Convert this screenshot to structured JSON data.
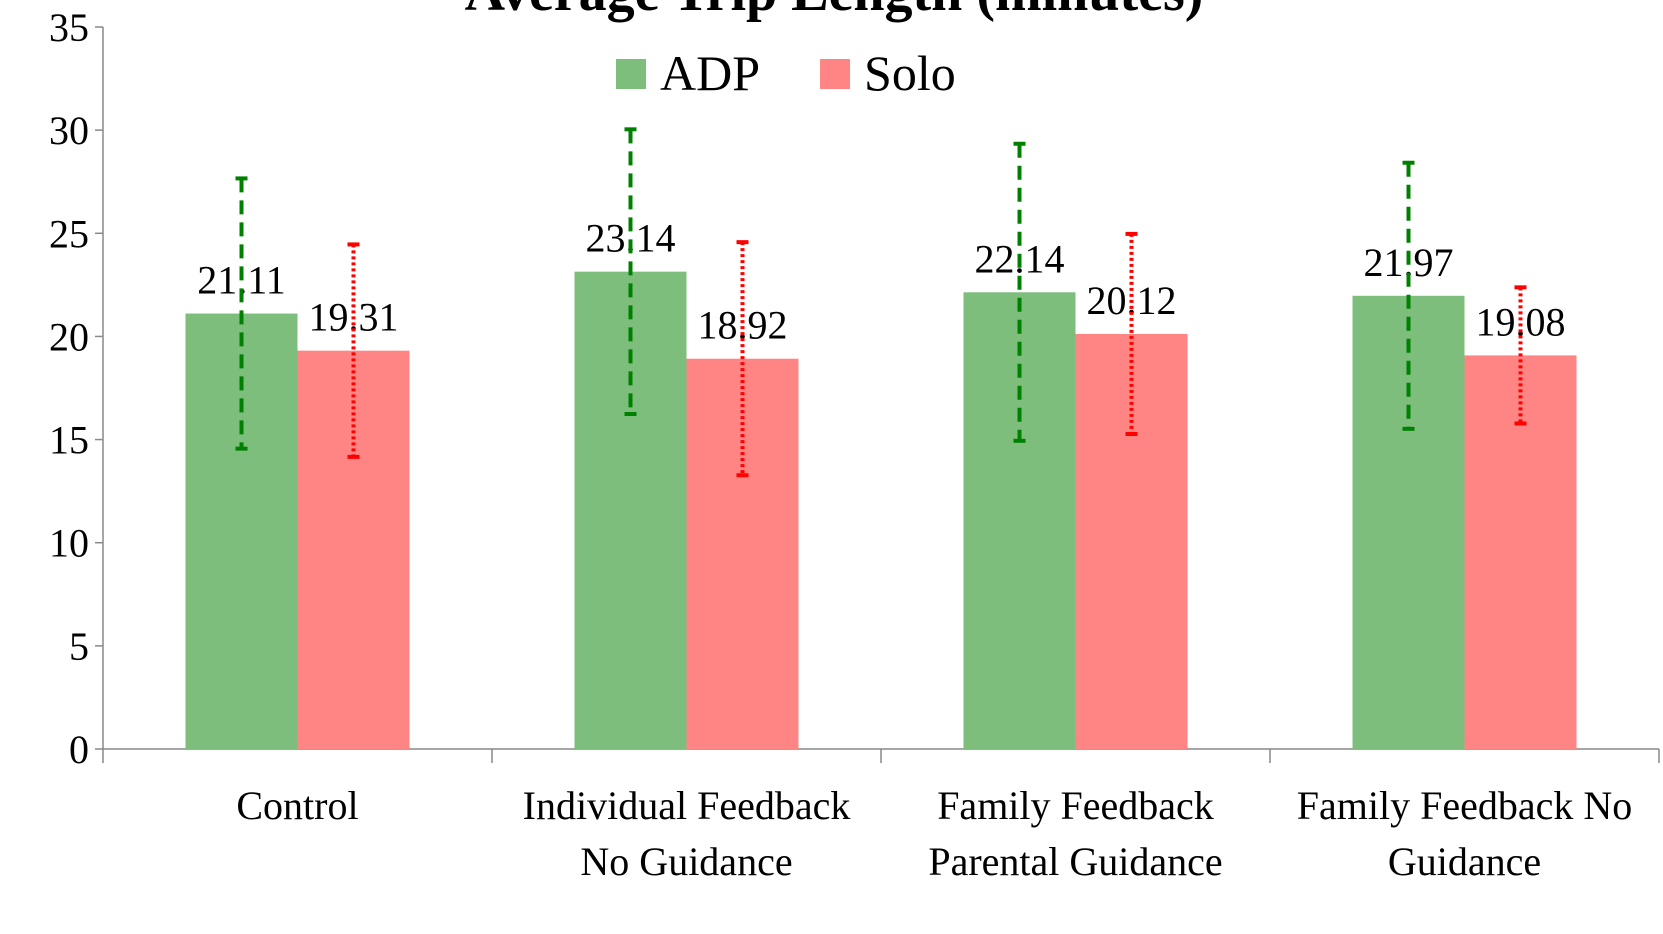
{
  "chart_data": {
    "type": "bar",
    "title": "Average Trip Length (minutes)",
    "categories": [
      "Control",
      "Individual Feedback No Guidance",
      "Family Feedback Parental Guidance",
      "Family Feedback No Guidance"
    ],
    "series": [
      {
        "name": "ADP",
        "color": "#7dbe7d",
        "error_color": "#008000",
        "values": [
          21.11,
          23.14,
          22.14,
          21.97
        ],
        "errors": [
          6.55,
          6.9,
          7.2,
          6.45
        ]
      },
      {
        "name": "Solo",
        "color": "#ff8585",
        "error_color": "#ff0000",
        "values": [
          19.31,
          18.92,
          20.12,
          19.08
        ],
        "errors": [
          5.15,
          5.65,
          4.85,
          3.3
        ]
      }
    ],
    "ylim": [
      0,
      35
    ],
    "yticks": [
      0,
      5,
      10,
      15,
      20,
      25,
      30,
      35
    ],
    "legend": "top"
  }
}
